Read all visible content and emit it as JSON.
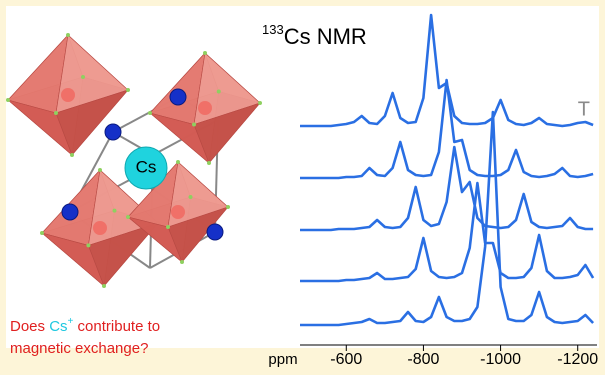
{
  "chart_data": {
    "type": "line",
    "title_sup": "133",
    "title": "Cs NMR",
    "series_label": "T",
    "xlabel": "ppm",
    "structure_label": "Cs",
    "caption": {
      "part1": "Does ",
      "highlight": "Cs",
      "sup": "+",
      "part2": " contribute to",
      "line2": "magnetic exchange?"
    },
    "x": [
      -480,
      -500,
      -520,
      -540,
      -560,
      -580,
      -600,
      -620,
      -640,
      -660,
      -680,
      -700,
      -720,
      -740,
      -760,
      -780,
      -800,
      -820,
      -840,
      -860,
      -880,
      -900,
      -920,
      -940,
      -960,
      -980,
      -1000,
      -1020,
      -1040,
      -1060,
      -1080,
      -1100,
      -1120,
      -1140,
      -1160,
      -1180,
      -1200,
      -1220,
      -1240
    ],
    "xlim": [
      -480,
      -1250
    ],
    "xticks": [
      -600,
      -800,
      -1000,
      -1200
    ],
    "series": [
      {
        "color": "#2a6fe3",
        "values": [
          2,
          2,
          2,
          2,
          2,
          3,
          4,
          6,
          12,
          5,
          4,
          12,
          35,
          10,
          5,
          6,
          30,
          113,
          40,
          45,
          12,
          5,
          4,
          4,
          5,
          10,
          28,
          8,
          4,
          3,
          5,
          10,
          4,
          3,
          2,
          3,
          5,
          6,
          3
        ]
      },
      {
        "color": "#2a6fe3",
        "values": [
          2,
          2,
          2,
          2,
          2,
          2,
          3,
          3,
          4,
          12,
          5,
          4,
          12,
          38,
          10,
          5,
          4,
          5,
          28,
          100,
          38,
          40,
          10,
          5,
          4,
          4,
          5,
          10,
          30,
          8,
          4,
          3,
          4,
          6,
          12,
          4,
          3,
          4,
          6
        ]
      },
      {
        "color": "#2a6fe3",
        "values": [
          2,
          2,
          2,
          2,
          2,
          3,
          3,
          3,
          4,
          5,
          12,
          5,
          4,
          5,
          14,
          45,
          12,
          6,
          8,
          30,
          85,
          40,
          50,
          14,
          6,
          5,
          4,
          5,
          12,
          38,
          10,
          5,
          4,
          5,
          6,
          14,
          5,
          3,
          3
        ]
      },
      {
        "color": "#2a6fe3",
        "values": [
          2,
          2,
          2,
          2,
          2,
          2,
          3,
          3,
          4,
          5,
          10,
          4,
          4,
          5,
          6,
          14,
          45,
          12,
          6,
          5,
          6,
          10,
          35,
          100,
          40,
          40,
          10,
          5,
          5,
          6,
          15,
          48,
          12,
          5,
          5,
          6,
          8,
          18,
          5
        ]
      },
      {
        "color": "#2a6fe3",
        "values": [
          2,
          2,
          2,
          2,
          2,
          2,
          3,
          4,
          5,
          8,
          4,
          4,
          5,
          6,
          15,
          6,
          5,
          10,
          30,
          10,
          6,
          6,
          8,
          20,
          80,
          215,
          40,
          8,
          6,
          6,
          12,
          35,
          10,
          5,
          4,
          5,
          6,
          12,
          4
        ]
      }
    ]
  }
}
